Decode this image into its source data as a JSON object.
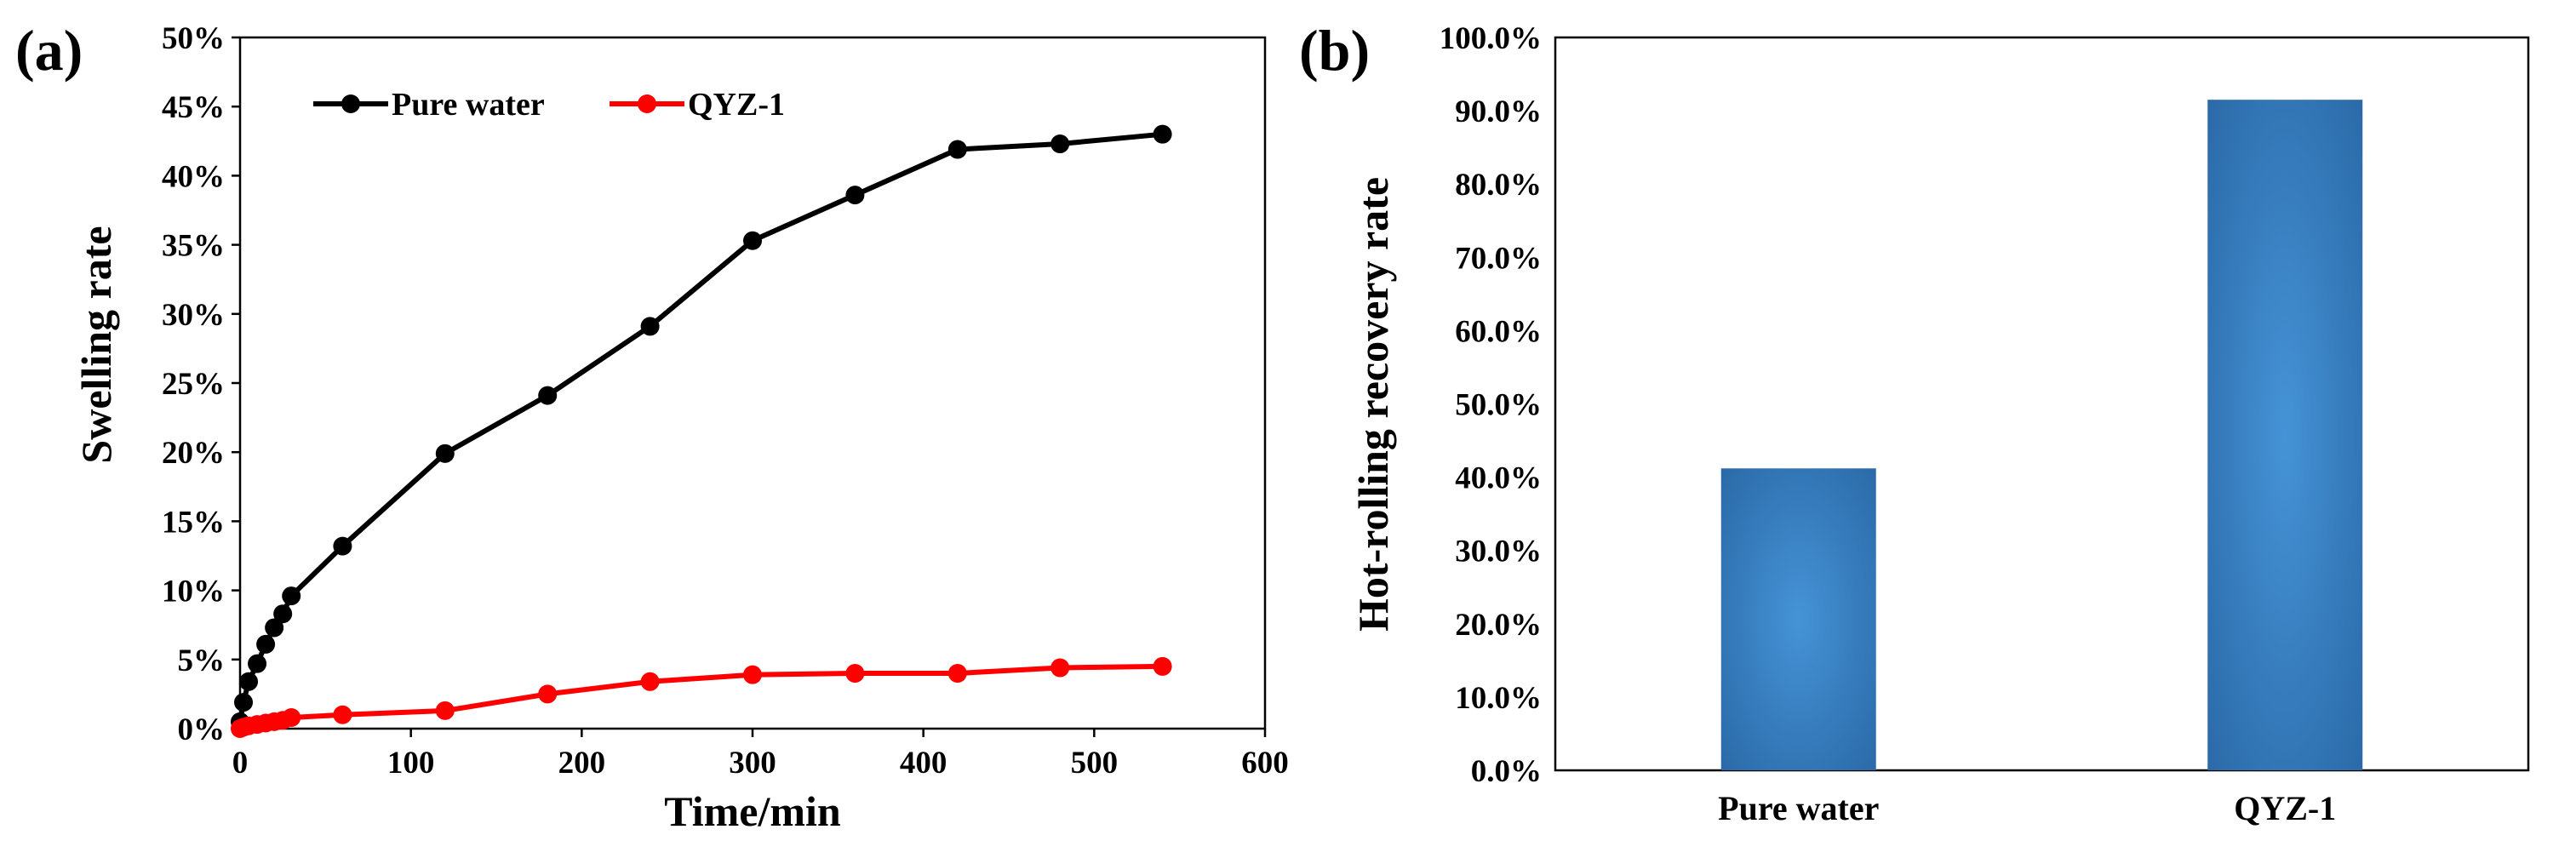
{
  "chart_data": [
    {
      "type": "line",
      "panel_label": "(a)",
      "xlabel": "Time/min",
      "ylabel": "Swelling rate",
      "xlim": [
        0,
        600
      ],
      "ylim": [
        0,
        0.5
      ],
      "xticks": [
        "0",
        "100",
        "200",
        "300",
        "400",
        "500",
        "600"
      ],
      "yticks": [
        "0%",
        "5%",
        "10%",
        "15%",
        "20%",
        "25%",
        "30%",
        "35%",
        "40%",
        "45%",
        "50%"
      ],
      "legend_position": "top-left",
      "series": [
        {
          "name": "Pure water",
          "color": "#000000",
          "x": [
            0,
            2,
            5,
            10,
            15,
            20,
            25,
            30,
            60,
            120,
            180,
            240,
            300,
            360,
            420,
            480,
            540
          ],
          "y": [
            0.005,
            0.019,
            0.034,
            0.047,
            0.061,
            0.073,
            0.083,
            0.096,
            0.132,
            0.199,
            0.241,
            0.291,
            0.353,
            0.386,
            0.419,
            0.423,
            0.43
          ]
        },
        {
          "name": "QYZ-1",
          "color": "#ff0000",
          "x": [
            0,
            2,
            5,
            10,
            15,
            20,
            25,
            30,
            60,
            120,
            180,
            240,
            300,
            360,
            420,
            480,
            540
          ],
          "y": [
            0.0,
            0.001,
            0.002,
            0.003,
            0.004,
            0.005,
            0.006,
            0.008,
            0.01,
            0.013,
            0.025,
            0.034,
            0.039,
            0.04,
            0.04,
            0.044,
            0.045
          ]
        }
      ]
    },
    {
      "type": "bar",
      "panel_label": "(b)",
      "xlabel": "",
      "ylabel": "Hot-rolling recovery rate",
      "ylim": [
        0,
        1.0
      ],
      "yticks": [
        "0.0%",
        "10.0%",
        "20.0%",
        "30.0%",
        "40.0%",
        "50.0%",
        "60.0%",
        "70.0%",
        "80.0%",
        "90.0%",
        "100.0%"
      ],
      "categories": [
        "Pure water",
        "QYZ-1"
      ],
      "values": [
        0.412,
        0.915
      ],
      "bar_color": "#3e86c8",
      "bar_edge_color": "#2b6aa8"
    }
  ]
}
